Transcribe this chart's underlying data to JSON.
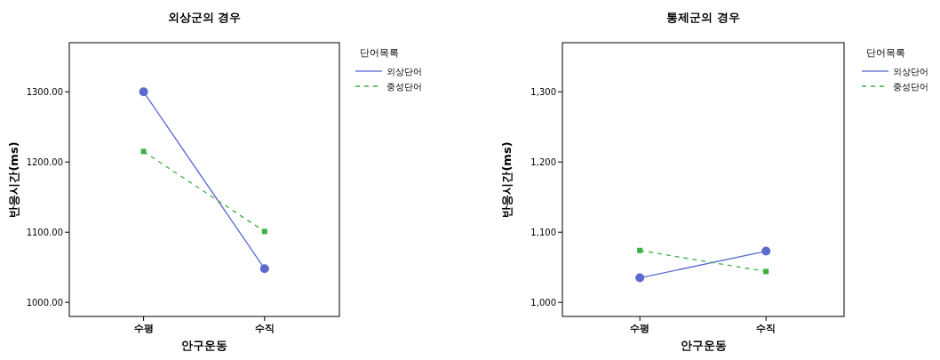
{
  "chart_data": [
    {
      "type": "line",
      "title": "외상군의 경우",
      "xlabel": "안구운동",
      "ylabel": "반응시간(ms)",
      "legend_title": "단어목록",
      "legend": "top right",
      "categories": [
        "수평",
        "수직"
      ],
      "series": [
        {
          "name": "외상단어",
          "color": "#5a6acf",
          "values": [
            1300,
            1048
          ],
          "marker": "circle",
          "line_style": "solid"
        },
        {
          "name": "중성단어",
          "color": "#3cb043",
          "values": [
            1215,
            1101
          ],
          "marker": "square",
          "line_style": "dashed"
        }
      ],
      "ylim": [
        980,
        1370
      ],
      "yticks": [
        {
          "value": 1000,
          "label": "1000.00"
        },
        {
          "value": 1100,
          "label": "1100.00"
        },
        {
          "value": 1200,
          "label": "1200.00"
        },
        {
          "value": 1300,
          "label": "1300.00"
        }
      ]
    },
    {
      "type": "line",
      "title": "통제군의 경우",
      "xlabel": "안구운동",
      "ylabel": "반응시간(ms)",
      "legend_title": "단어목록",
      "legend": "top right",
      "categories": [
        "수평",
        "수직"
      ],
      "series": [
        {
          "name": "외상단어",
          "color": "#5a6acf",
          "values": [
            1035,
            1073
          ],
          "marker": "circle",
          "line_style": "solid"
        },
        {
          "name": "중성단어",
          "color": "#3cb043",
          "values": [
            1074,
            1044
          ],
          "marker": "square",
          "line_style": "dashed"
        }
      ],
      "ylim": [
        980,
        1370
      ],
      "yticks": [
        {
          "value": 1000,
          "label": "1,000"
        },
        {
          "value": 1100,
          "label": "1,100"
        },
        {
          "value": 1200,
          "label": "1,200"
        },
        {
          "value": 1300,
          "label": "1,300"
        }
      ]
    }
  ]
}
